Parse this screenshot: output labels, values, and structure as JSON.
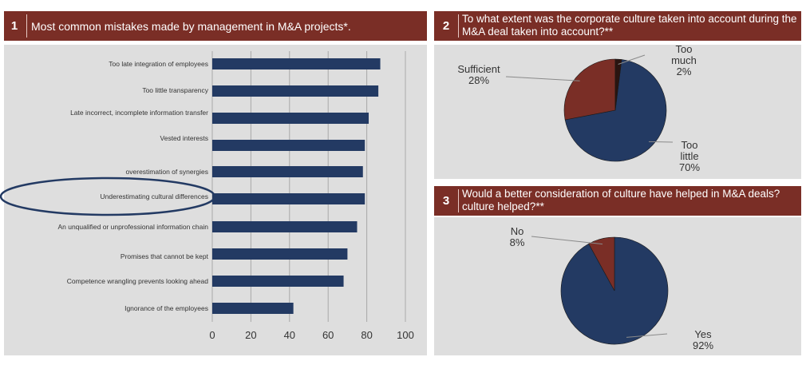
{
  "colors": {
    "header": "#7a2e26",
    "panel_bg": "#dedede",
    "bar": "#233a63",
    "pie_navy": "#233a63",
    "pie_red": "#7a2e26",
    "pie_dark": "#2a1410",
    "ellipse": "#233a63"
  },
  "panel1": {
    "number": "1",
    "title": "Most common mistakes made by management in M&A projects*."
  },
  "panel2": {
    "number": "2",
    "title_line1": "To what extent was the corporate culture taken into account during the",
    "title_line2": "M&A deal taken into account?**"
  },
  "panel3": {
    "number": "3",
    "title_line1": "Would a better consideration of culture have helped in M&A deals?",
    "title_line2": "culture helped?**"
  },
  "chart_data": [
    {
      "type": "bar",
      "orientation": "horizontal",
      "title": "Most common mistakes made by management in M&A projects*.",
      "categories": [
        "Too late integration of employees",
        "Too little transparency",
        "Late incorrect, incomplete information transfer",
        "Vested interests",
        "overestimation of synergies",
        "Underestimating cultural differences",
        "An unqualified or unprofessional information chain",
        "Promises that cannot be kept",
        "Competence wrangling prevents looking ahead",
        "Ignorance of the employees"
      ],
      "values": [
        87,
        86,
        81,
        79,
        78,
        79,
        75,
        70,
        68,
        42
      ],
      "xlim": [
        0,
        100
      ],
      "xticks": [
        "0",
        "20",
        "40",
        "60",
        "80",
        "100"
      ],
      "grid": "vertical",
      "highlighted_category": "Underestimating cultural differences"
    },
    {
      "type": "pie",
      "title": "To what extent was the corporate culture taken into account during the M&A deal taken into account?**",
      "slices": [
        {
          "label": "Too little",
          "value": 70,
          "label_lines": [
            "Too",
            "little",
            "70%"
          ],
          "color": "#233a63"
        },
        {
          "label": "Sufficient",
          "value": 28,
          "label_lines": [
            "Sufficient",
            "28%"
          ],
          "color": "#7a2e26"
        },
        {
          "label": "Too much",
          "value": 2,
          "label_lines": [
            "Too",
            "much",
            "2%"
          ],
          "color": "#2a1410"
        }
      ]
    },
    {
      "type": "pie",
      "title": "Would a better consideration of culture have helped in M&A deals? culture helped?**",
      "slices": [
        {
          "label": "Yes",
          "value": 92,
          "label_lines": [
            "Yes",
            "92%"
          ],
          "color": "#233a63"
        },
        {
          "label": "No",
          "value": 8,
          "label_lines": [
            "No",
            "8%"
          ],
          "color": "#7a2e26"
        }
      ]
    }
  ]
}
